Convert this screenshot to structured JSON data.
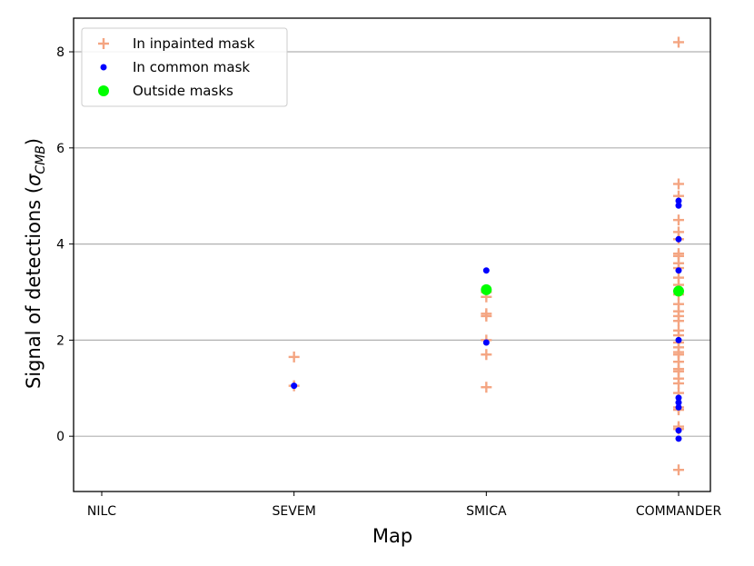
{
  "chart_data": {
    "type": "scatter",
    "xlabel": "Map",
    "ylabel_main": "Signal of detections (",
    "ylabel_sigma": "σ",
    "ylabel_sub": "CMB",
    "ylabel_close": ")",
    "categories": [
      "NILC",
      "SEVEM",
      "SMICA",
      "COMMANDER"
    ],
    "ylim": [
      -1.15,
      8.7
    ],
    "yticks": [
      0,
      2,
      4,
      6,
      8
    ],
    "grid": "horizontal",
    "legend_position": "top-left",
    "series": [
      {
        "name": "In inpainted mask",
        "marker": "plus",
        "color": "#f4a582",
        "points": [
          {
            "x": "SEVEM",
            "y": 1.65
          },
          {
            "x": "SEVEM",
            "y": 1.05
          },
          {
            "x": "SMICA",
            "y": 3.0
          },
          {
            "x": "SMICA",
            "y": 2.9
          },
          {
            "x": "SMICA",
            "y": 2.55
          },
          {
            "x": "SMICA",
            "y": 2.5
          },
          {
            "x": "SMICA",
            "y": 2.0
          },
          {
            "x": "SMICA",
            "y": 1.7
          },
          {
            "x": "SMICA",
            "y": 1.02
          },
          {
            "x": "COMMANDER",
            "y": 8.2
          },
          {
            "x": "COMMANDER",
            "y": 5.25
          },
          {
            "x": "COMMANDER",
            "y": 5.0
          },
          {
            "x": "COMMANDER",
            "y": 4.5
          },
          {
            "x": "COMMANDER",
            "y": 4.25
          },
          {
            "x": "COMMANDER",
            "y": 4.1
          },
          {
            "x": "COMMANDER",
            "y": 3.8
          },
          {
            "x": "COMMANDER",
            "y": 3.75
          },
          {
            "x": "COMMANDER",
            "y": 3.6
          },
          {
            "x": "COMMANDER",
            "y": 3.5
          },
          {
            "x": "COMMANDER",
            "y": 3.3
          },
          {
            "x": "COMMANDER",
            "y": 3.15
          },
          {
            "x": "COMMANDER",
            "y": 2.95
          },
          {
            "x": "COMMANDER",
            "y": 2.75
          },
          {
            "x": "COMMANDER",
            "y": 2.6
          },
          {
            "x": "COMMANDER",
            "y": 2.5
          },
          {
            "x": "COMMANDER",
            "y": 2.4
          },
          {
            "x": "COMMANDER",
            "y": 2.2
          },
          {
            "x": "COMMANDER",
            "y": 2.1
          },
          {
            "x": "COMMANDER",
            "y": 1.95
          },
          {
            "x": "COMMANDER",
            "y": 1.85
          },
          {
            "x": "COMMANDER",
            "y": 1.75
          },
          {
            "x": "COMMANDER",
            "y": 1.7
          },
          {
            "x": "COMMANDER",
            "y": 1.55
          },
          {
            "x": "COMMANDER",
            "y": 1.4
          },
          {
            "x": "COMMANDER",
            "y": 1.35
          },
          {
            "x": "COMMANDER",
            "y": 1.2
          },
          {
            "x": "COMMANDER",
            "y": 1.1
          },
          {
            "x": "COMMANDER",
            "y": 0.9
          },
          {
            "x": "COMMANDER",
            "y": 0.6
          },
          {
            "x": "COMMANDER",
            "y": 0.55
          },
          {
            "x": "COMMANDER",
            "y": 0.2
          },
          {
            "x": "COMMANDER",
            "y": 0.15
          },
          {
            "x": "COMMANDER",
            "y": -0.7
          }
        ]
      },
      {
        "name": "In common mask",
        "marker": "dot",
        "color": "#0000ff",
        "points": [
          {
            "x": "SEVEM",
            "y": 1.05
          },
          {
            "x": "SMICA",
            "y": 3.45
          },
          {
            "x": "SMICA",
            "y": 1.95
          },
          {
            "x": "COMMANDER",
            "y": 4.9
          },
          {
            "x": "COMMANDER",
            "y": 4.8
          },
          {
            "x": "COMMANDER",
            "y": 4.1
          },
          {
            "x": "COMMANDER",
            "y": 3.45
          },
          {
            "x": "COMMANDER",
            "y": 2.0
          },
          {
            "x": "COMMANDER",
            "y": 0.8
          },
          {
            "x": "COMMANDER",
            "y": 0.7
          },
          {
            "x": "COMMANDER",
            "y": 0.6
          },
          {
            "x": "COMMANDER",
            "y": 0.12
          },
          {
            "x": "COMMANDER",
            "y": -0.05
          }
        ]
      },
      {
        "name": "Outside masks",
        "marker": "big-dot",
        "color": "#00ff00",
        "points": [
          {
            "x": "SMICA",
            "y": 3.05
          },
          {
            "x": "COMMANDER",
            "y": 3.02
          }
        ]
      }
    ]
  }
}
